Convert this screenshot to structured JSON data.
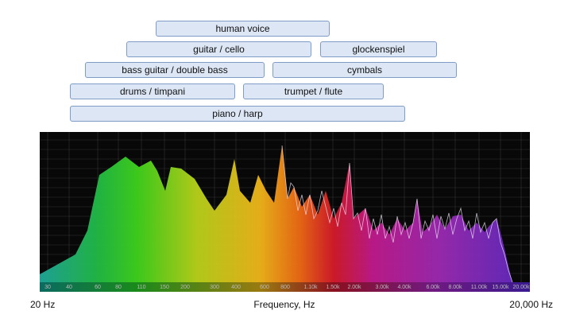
{
  "ranges": [
    "human voice",
    "guitar / cello",
    "glockenspiel",
    "bass guitar / double bass",
    "cymbals",
    "drums / timpani",
    "trumpet / flute",
    "piano / harp"
  ],
  "spectrum_ticks": [
    "30",
    "40",
    "60",
    "80",
    "110",
    "150",
    "200",
    "300",
    "400",
    "600",
    "800",
    "1.10k",
    "1.50k",
    "2.00k",
    "3.00k",
    "4.00k",
    "6.00k",
    "8.00k",
    "11.00k",
    "15.00k",
    "20.00k"
  ],
  "footer": {
    "left": "20 Hz",
    "center": "Frequency, Hz",
    "right": "20,000 Hz"
  }
}
